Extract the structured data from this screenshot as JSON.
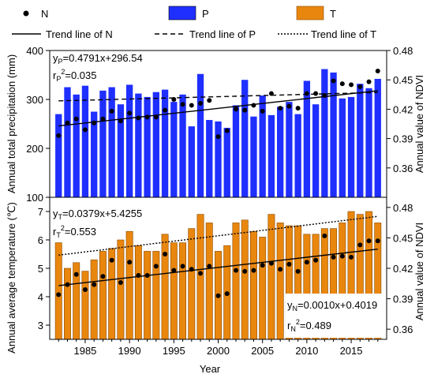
{
  "colors": {
    "precip_bar": "#1f2fff",
    "temp_bar": "#e8860e",
    "temp_bar_edge": "#8a4a00",
    "ndvi_point": "#000000",
    "trend": "#000000"
  },
  "legend": {
    "n": "N",
    "p": "P",
    "t": "T",
    "trend_n": "Trend line of N",
    "trend_p": "Trend line of P",
    "trend_t": "Trend line of T"
  },
  "equations": {
    "p_eq_pre": "y",
    "p_eq_sub": "P",
    "p_eq_post": "=0.4791x+296.54",
    "p_r_pre": "r",
    "p_r_sub": "P",
    "p_r_sup": "2",
    "p_r_post": "=0.035",
    "t_eq_pre": "y",
    "t_eq_sub": "T",
    "t_eq_post": "=0.0379x+5.4255",
    "t_r_pre": "r",
    "t_r_sub": "T",
    "t_r_sup": "2",
    "t_r_post": "=0.553",
    "n_eq_pre": "y",
    "n_eq_sub": "N",
    "n_eq_post": "=0.0010x+0.4019",
    "n_r_pre": "r",
    "n_r_sub": "N",
    "n_r_sup": "2",
    "n_r_post": "=0.489"
  },
  "chart_data": {
    "type": "bar",
    "x_label": "Year",
    "x_range": [
      1981,
      2019
    ],
    "x_ticks": [
      1985,
      1990,
      1995,
      2000,
      2005,
      2010,
      2015
    ],
    "years": [
      1982,
      1983,
      1984,
      1985,
      1986,
      1987,
      1988,
      1989,
      1990,
      1991,
      1992,
      1993,
      1994,
      1995,
      1996,
      1997,
      1998,
      1999,
      2000,
      2001,
      2002,
      2003,
      2004,
      2005,
      2006,
      2007,
      2008,
      2009,
      2010,
      2011,
      2012,
      2013,
      2014,
      2015,
      2016,
      2017,
      2018
    ],
    "top_panel": {
      "ylabel_left": "Annual total precipitation (mm)",
      "ylim_left": [
        100,
        400
      ],
      "yticks_left": [
        100,
        200,
        300,
        400
      ],
      "ylabel_right": "Annual value of NDVI",
      "ylim_right": [
        0.33,
        0.48
      ],
      "yticks_right": [
        0.36,
        0.39,
        0.42,
        0.45,
        0.48
      ],
      "precipitation": [
        270,
        325,
        310,
        328,
        275,
        318,
        325,
        290,
        330,
        312,
        305,
        315,
        320,
        295,
        310,
        245,
        352,
        258,
        255,
        242,
        288,
        340,
        265,
        308,
        268,
        285,
        295,
        270,
        338,
        290,
        362,
        355,
        302,
        305,
        332,
        323,
        342
      ],
      "ndvi": [
        0.393,
        0.406,
        0.41,
        0.399,
        0.406,
        0.41,
        0.418,
        0.408,
        0.416,
        0.411,
        0.412,
        0.412,
        0.419,
        0.43,
        0.425,
        0.424,
        0.426,
        0.429,
        0.392,
        0.398,
        0.42,
        0.419,
        0.424,
        0.418,
        0.436,
        0.421,
        0.423,
        0.421,
        0.436,
        0.436,
        0.434,
        0.449,
        0.446,
        0.445,
        0.443,
        0.448,
        0.459
      ],
      "trend_n": {
        "slope": 0.001,
        "intercept": 0.4019
      },
      "trend_p": {
        "slope": 0.4791,
        "intercept": 296.54
      }
    },
    "bottom_panel": {
      "ylabel_left": "Annual average temperature (℃)",
      "ylim_left": [
        2.5,
        7.5
      ],
      "yticks_left": [
        3,
        4,
        5,
        6,
        7
      ],
      "ylabel_right": "Annual value of NDVI",
      "ylim_right": [
        0.35,
        0.49
      ],
      "yticks_right": [
        0.36,
        0.39,
        0.42,
        0.45,
        0.48
      ],
      "temperature": [
        5.9,
        5.0,
        5.2,
        4.9,
        5.3,
        5.6,
        5.7,
        6.0,
        6.3,
        5.8,
        5.6,
        5.6,
        6.2,
        5.9,
        5.9,
        6.4,
        6.9,
        6.6,
        5.6,
        5.8,
        6.6,
        6.7,
        6.3,
        6.1,
        6.9,
        6.6,
        6.5,
        6.5,
        6.2,
        6.2,
        6.4,
        6.4,
        6.6,
        7.0,
        6.9,
        7.0,
        6.6
      ],
      "ndvi": [
        0.394,
        0.404,
        0.414,
        0.399,
        0.404,
        0.412,
        0.428,
        0.406,
        0.426,
        0.413,
        0.413,
        0.422,
        0.434,
        0.418,
        0.422,
        0.419,
        0.415,
        0.422,
        0.393,
        0.395,
        0.418,
        0.417,
        0.418,
        0.423,
        0.425,
        0.419,
        0.424,
        0.417,
        0.426,
        0.428,
        0.452,
        0.431,
        0.432,
        0.431,
        0.443,
        0.447,
        0.447
      ],
      "trend_t": {
        "slope": 0.0379,
        "intercept": 5.4255
      },
      "trend_n": {
        "slope": 0.001,
        "intercept": 0.4019
      }
    }
  }
}
